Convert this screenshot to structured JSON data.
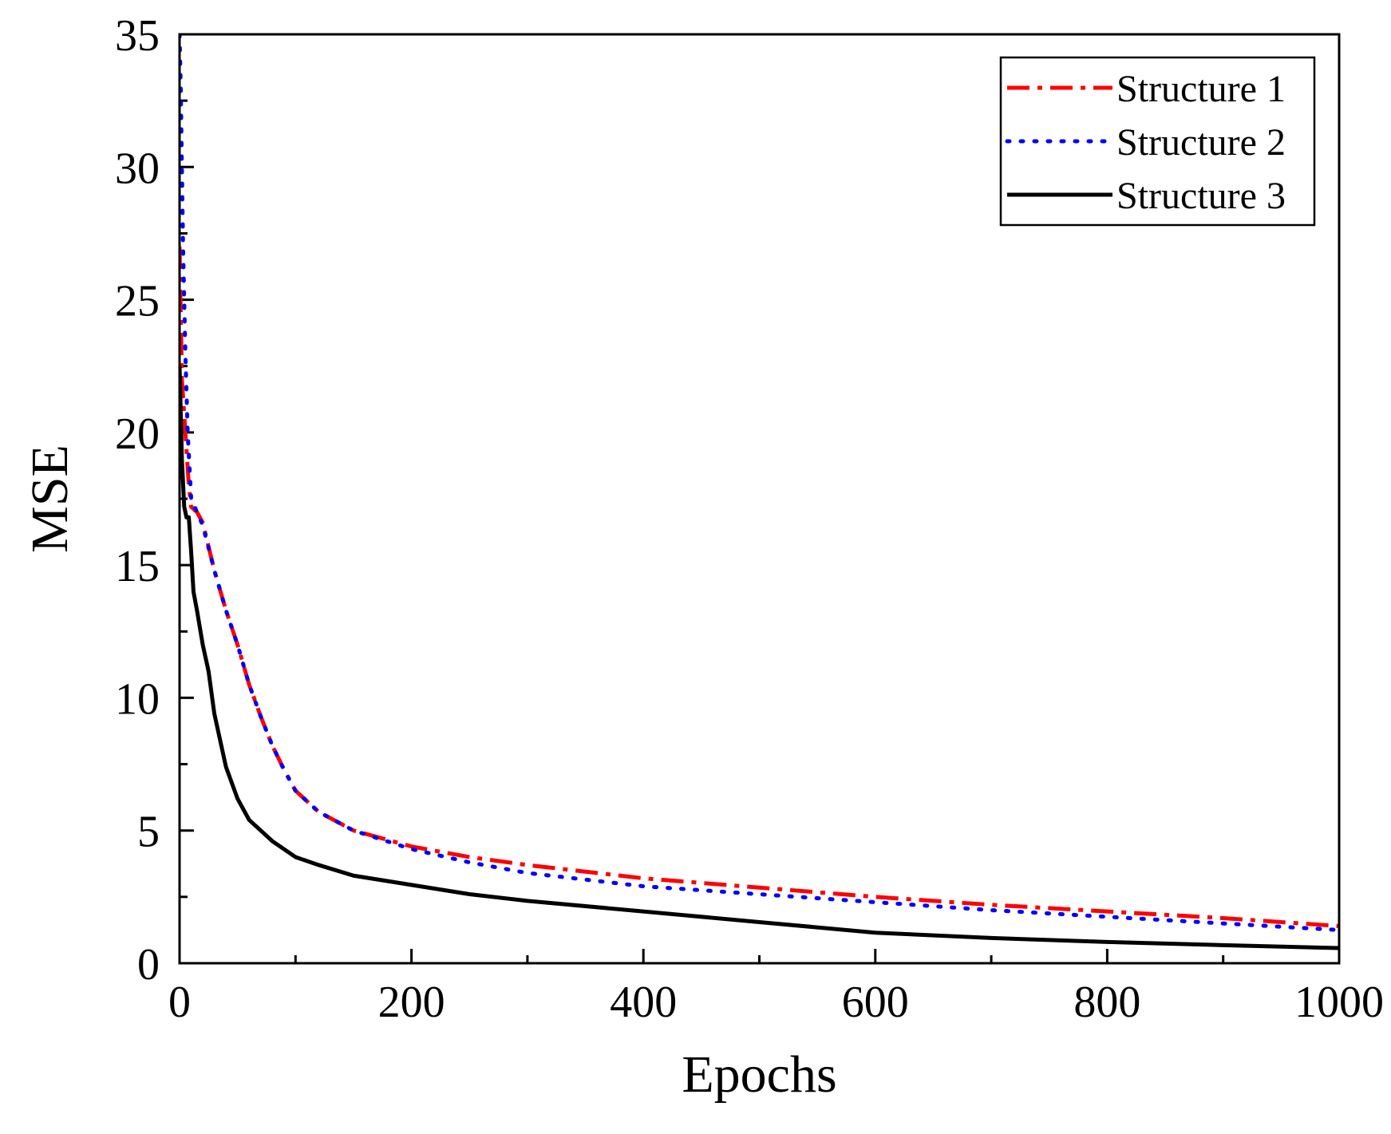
{
  "chart_data": {
    "type": "line",
    "title": "",
    "xlabel": "Epochs",
    "ylabel": "MSE",
    "xlim": [
      0,
      1000
    ],
    "ylim": [
      0,
      35
    ],
    "x_ticks": [
      0,
      200,
      400,
      600,
      800,
      1000
    ],
    "y_ticks": [
      0,
      5,
      10,
      15,
      20,
      25,
      30,
      35
    ],
    "x_tick_labels": [
      "0",
      "200",
      "400",
      "600",
      "800",
      "1000"
    ],
    "y_tick_labels": [
      "0",
      "5",
      "10",
      "15",
      "20",
      "25",
      "30",
      "35"
    ],
    "grid": false,
    "legend_position": "top-right",
    "series": [
      {
        "name": "Structure 1",
        "color": "#ff0000",
        "style": "dash-dot",
        "x": [
          0,
          2,
          5,
          8,
          10,
          15,
          20,
          30,
          40,
          50,
          60,
          70,
          80,
          90,
          100,
          120,
          150,
          200,
          250,
          300,
          400,
          500,
          600,
          700,
          800,
          900,
          1000
        ],
        "y": [
          27,
          22,
          20,
          18,
          17.2,
          17,
          16.6,
          14.8,
          13.3,
          12,
          10.5,
          9.3,
          8.2,
          7.3,
          6.5,
          5.7,
          5.0,
          4.4,
          4.0,
          3.7,
          3.2,
          2.85,
          2.5,
          2.2,
          1.95,
          1.7,
          1.4
        ]
      },
      {
        "name": "Structure 2",
        "color": "#0000ff",
        "style": "dotted",
        "x": [
          0,
          1,
          2,
          3,
          5,
          7,
          10,
          15,
          20,
          30,
          40,
          50,
          60,
          70,
          80,
          90,
          100,
          120,
          150,
          200,
          250,
          300,
          400,
          500,
          600,
          700,
          800,
          900,
          1000
        ],
        "y": [
          35,
          33,
          30,
          27,
          23,
          20,
          17.5,
          17.0,
          16.5,
          14.8,
          13.3,
          12,
          10.5,
          9.3,
          8.2,
          7.3,
          6.5,
          5.7,
          5.0,
          4.3,
          3.8,
          3.4,
          2.9,
          2.6,
          2.3,
          2.0,
          1.75,
          1.5,
          1.25
        ]
      },
      {
        "name": "Structure 3",
        "color": "#000000",
        "style": "solid",
        "x": [
          0,
          2,
          4,
          6,
          8,
          10,
          12,
          15,
          20,
          25,
          30,
          40,
          50,
          60,
          70,
          80,
          100,
          120,
          150,
          200,
          250,
          300,
          400,
          500,
          600,
          700,
          800,
          900,
          1000
        ],
        "y": [
          22.5,
          19,
          17.2,
          16.8,
          16.8,
          15.5,
          14,
          13.3,
          12.0,
          11.0,
          9.4,
          7.4,
          6.2,
          5.4,
          5.0,
          4.6,
          4.0,
          3.7,
          3.3,
          2.95,
          2.6,
          2.35,
          1.95,
          1.55,
          1.15,
          0.95,
          0.8,
          0.68,
          0.57
        ]
      }
    ]
  }
}
